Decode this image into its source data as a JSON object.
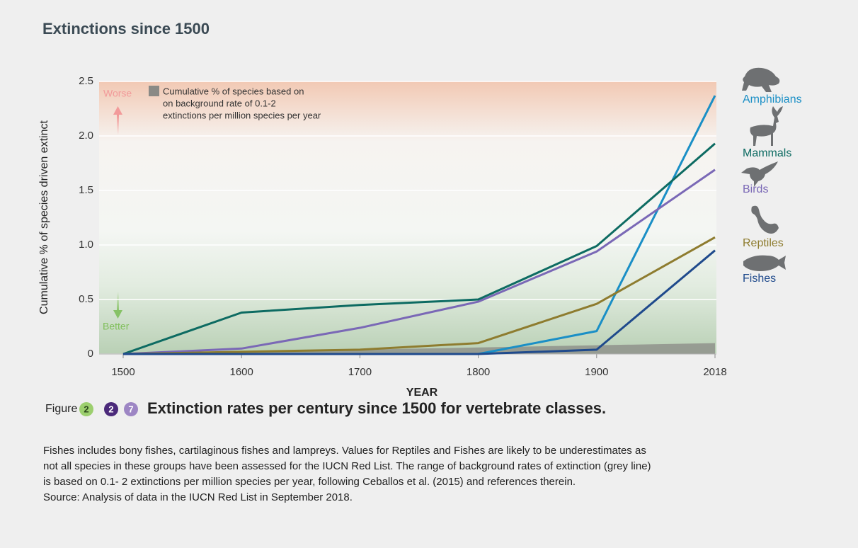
{
  "chart_data": {
    "type": "line",
    "title": "Extinctions since 1500",
    "y_label": "Cumulative % of species driven extinct",
    "x_label": "YEAR",
    "categories": [
      "1500",
      "1600",
      "1700",
      "1800",
      "1900",
      "2018"
    ],
    "ylim": [
      0,
      2.5
    ],
    "yticks": [
      0,
      0.5,
      {
        "value": 1,
        "label": "1.0"
      },
      1.5,
      {
        "value": 2,
        "label": "2.0"
      },
      2.5
    ],
    "grid": true,
    "worse_label": "Worse",
    "better_label": "Better",
    "series": [
      {
        "name": "Amphibians",
        "color": "#1a8fc6",
        "values": [
          0,
          0,
          0,
          0,
          0.21,
          2.37
        ]
      },
      {
        "name": "Mammals",
        "color": "#0d6b62",
        "values": [
          0,
          0.38,
          0.45,
          0.5,
          0.99,
          1.93
        ]
      },
      {
        "name": "Birds",
        "color": "#7a68b6",
        "values": [
          0,
          0.05,
          0.24,
          0.48,
          0.94,
          1.69
        ]
      },
      {
        "name": "Reptiles",
        "color": "#8e7c2f",
        "values": [
          0,
          0.02,
          0.04,
          0.1,
          0.46,
          1.07
        ]
      },
      {
        "name": "Fishes",
        "color": "#1f4a8c",
        "values": [
          0,
          0,
          0,
          0,
          0.04,
          0.95
        ]
      }
    ],
    "background": {
      "label_lines": [
        "Cumulative % of species based on",
        "on background rate of 0.1-2",
        "extinctions per million species per year"
      ],
      "color": "#8a8a86",
      "values": [
        0,
        0.02,
        0.04,
        0.06,
        0.08,
        0.1
      ]
    }
  },
  "caption": {
    "figure": "Figure",
    "badges": [
      "2",
      "2",
      "7"
    ],
    "heading": "Extinction rates per century since 1500 for vertebrate classes.",
    "lines": [
      "Fishes includes bony fishes, cartilaginous fishes and lampreys. Values for Reptiles and Fishes are likely to be underestimates as",
      "not all species in these groups have been assessed for the IUCN Red List. The range of background rates of extinction (grey line)",
      "is based on 0.1- 2 extinctions per million species per year, following Ceballos et al. (2015) and references therein.",
      "Source: Analysis of data in the IUCN Red List in September 2018."
    ]
  }
}
